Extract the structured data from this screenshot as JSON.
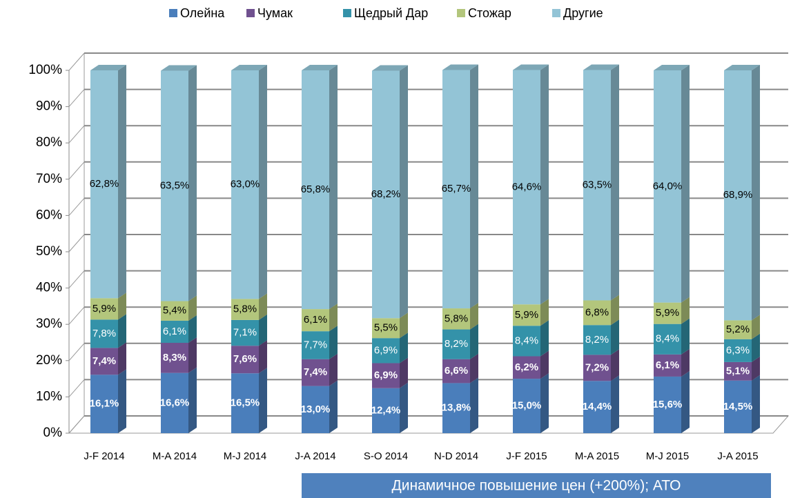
{
  "chart_data": {
    "type": "stacked_bar_3d",
    "categories": [
      "J-F 2014",
      "M-A 2014",
      "M-J 2014",
      "J-A 2014",
      "S-O 2014",
      "N-D 2014",
      "J-F 2015",
      "M-A 2015",
      "M-J 2015",
      "J-A 2015"
    ],
    "series": [
      {
        "name": "Олейна",
        "color": "#4a7ebb",
        "values": [
          16.1,
          16.6,
          16.5,
          13.0,
          12.4,
          13.8,
          15.0,
          14.4,
          15.6,
          14.5
        ],
        "value_labels": [
          "16,1%",
          "16,6%",
          "16,5%",
          "13,0%",
          "12,4%",
          "13,8%",
          "15,0%",
          "14,4%",
          "15,6%",
          "14,5%"
        ]
      },
      {
        "name": "Чумак",
        "color": "#70518f",
        "values": [
          7.4,
          8.3,
          7.6,
          7.4,
          6.9,
          6.6,
          6.2,
          7.2,
          6.1,
          5.1
        ],
        "value_labels": [
          "7,4%",
          "8,3%",
          "7,6%",
          "7,4%",
          "6,9%",
          "6,6%",
          "6,2%",
          "7,2%",
          "6,1%",
          "5,1%"
        ]
      },
      {
        "name": "Щедрый Дар",
        "color": "#3492a9",
        "values": [
          7.8,
          6.1,
          7.1,
          7.7,
          6.9,
          8.2,
          8.4,
          8.2,
          8.4,
          6.3
        ],
        "value_labels": [
          "7,8%",
          "6,1%",
          "7,1%",
          "7,7%",
          "6,9%",
          "8,2%",
          "8,4%",
          "8,2%",
          "8,4%",
          "6,3%"
        ]
      },
      {
        "name": "Стожар",
        "color": "#b3c67c",
        "values": [
          5.9,
          5.4,
          5.8,
          6.1,
          5.5,
          5.8,
          5.9,
          6.8,
          5.9,
          5.2
        ],
        "value_labels": [
          "5,9%",
          "5,4%",
          "5,8%",
          "6,1%",
          "5,5%",
          "5,8%",
          "5,9%",
          "6,8%",
          "5,9%",
          "5,2%"
        ]
      },
      {
        "name": "Другие",
        "color": "#93c4d6",
        "values": [
          62.8,
          63.5,
          63.0,
          65.8,
          68.2,
          65.7,
          64.6,
          63.5,
          64.0,
          68.9
        ],
        "value_labels": [
          "62,8%",
          "63,5%",
          "63,0%",
          "65,8%",
          "68,2%",
          "65,7%",
          "64,6%",
          "63,5%",
          "64,0%",
          "68,9%"
        ]
      }
    ],
    "ylim": [
      0,
      100
    ],
    "yticks": [
      {
        "value": 0,
        "label": "0%"
      },
      {
        "value": 10,
        "label": "10%"
      },
      {
        "value": 20,
        "label": "20%"
      },
      {
        "value": 30,
        "label": "30%"
      },
      {
        "value": 40,
        "label": "40%"
      },
      {
        "value": 50,
        "label": "50%"
      },
      {
        "value": 60,
        "label": "60%"
      },
      {
        "value": 70,
        "label": "70%"
      },
      {
        "value": 80,
        "label": "80%"
      },
      {
        "value": 90,
        "label": "90%"
      },
      {
        "value": 100,
        "label": "100%"
      }
    ],
    "grid": true,
    "legend": "top",
    "annotation": "Динамичное повышение цен (+200%); АТО"
  }
}
